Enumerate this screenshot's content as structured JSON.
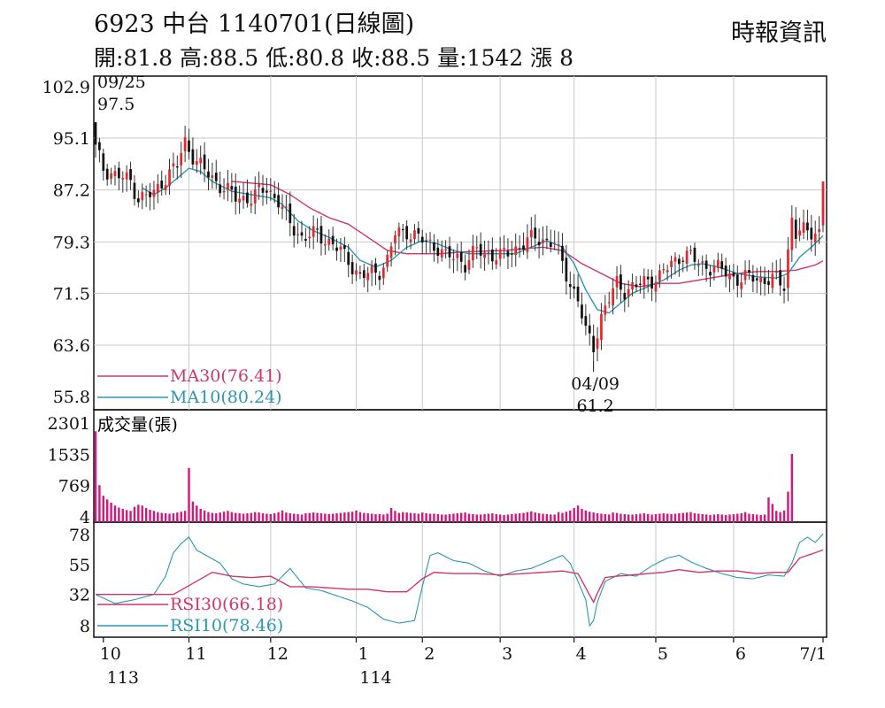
{
  "header": {
    "title": "6923  中台 1140701(日線圖)",
    "ohlc": "開:81.8 高:88.5 低:80.8 收:88.5 量:1542 漲 8",
    "source": "時報資訊"
  },
  "colors": {
    "up": "#e8262c",
    "down": "#111111",
    "ma30": "#d2356b",
    "ma10": "#2a97b4",
    "volume": "#d1187b",
    "grid": "#c9c9c9",
    "frame": "#111111"
  },
  "chart_data": [
    {
      "type": "candlestick",
      "y_ticks": [
        "102.9",
        "95.1",
        "87.2",
        "79.3",
        "71.5",
        "63.6",
        "55.8"
      ],
      "ylim": [
        55.8,
        102.9
      ],
      "x_labels": [
        {
          "label": "10",
          "sub": "113",
          "day": 2
        },
        {
          "label": "11",
          "day": 24
        },
        {
          "label": "12",
          "day": 45
        },
        {
          "label": "1",
          "sub": "114",
          "day": 67
        },
        {
          "label": "2",
          "day": 84
        },
        {
          "label": "3",
          "day": 104
        },
        {
          "label": "4",
          "day": 123
        },
        {
          "label": "5",
          "day": 144
        },
        {
          "label": "6",
          "day": 164
        },
        {
          "label": "7/1",
          "day": 187
        }
      ],
      "legend": [
        {
          "key": "ma30",
          "label": "MA30(76.41)"
        },
        {
          "key": "ma10",
          "label": "MA10(80.24)"
        }
      ],
      "annotations": [
        {
          "date": "09/25",
          "value": "97.5",
          "day": 0
        },
        {
          "date": "04/09",
          "value": "61.2",
          "day": 128
        }
      ],
      "close_anchors": [
        [
          0,
          93.5
        ],
        [
          2,
          90.5
        ],
        [
          5,
          89.5
        ],
        [
          9,
          88.5
        ],
        [
          11,
          86.0
        ],
        [
          15,
          86.5
        ],
        [
          17,
          88.5
        ],
        [
          21,
          91.0
        ],
        [
          23,
          94.5
        ],
        [
          26,
          91.5
        ],
        [
          29,
          89.5
        ],
        [
          33,
          87.5
        ],
        [
          36,
          86.0
        ],
        [
          40,
          86.0
        ],
        [
          44,
          87.5
        ],
        [
          47,
          85.5
        ],
        [
          50,
          82.0
        ],
        [
          53,
          80.0
        ],
        [
          57,
          80.5
        ],
        [
          61,
          79.0
        ],
        [
          65,
          76.5
        ],
        [
          68,
          74.0
        ],
        [
          71,
          74.5
        ],
        [
          73,
          75.0
        ],
        [
          75,
          76.5
        ],
        [
          77,
          80.5
        ],
        [
          80,
          81.0
        ],
        [
          84,
          79.5
        ],
        [
          88,
          78.5
        ],
        [
          90,
          77.0
        ],
        [
          93,
          77.0
        ],
        [
          95,
          76.0
        ],
        [
          98,
          78.0
        ],
        [
          101,
          77.5
        ],
        [
          104,
          77.0
        ],
        [
          107,
          78.0
        ],
        [
          110,
          79.0
        ],
        [
          113,
          80.0
        ],
        [
          116,
          79.5
        ],
        [
          118,
          79.0
        ],
        [
          120,
          76.0
        ],
        [
          122,
          73.0
        ],
        [
          124,
          70.5
        ],
        [
          126,
          65.5
        ],
        [
          128,
          63.5
        ],
        [
          130,
          68.0
        ],
        [
          132,
          70.5
        ],
        [
          134,
          73.0
        ],
        [
          136,
          72.0
        ],
        [
          139,
          72.5
        ],
        [
          142,
          73.5
        ],
        [
          145,
          74.0
        ],
        [
          148,
          76.0
        ],
        [
          151,
          77.5
        ],
        [
          153,
          77.0
        ],
        [
          155,
          76.0
        ],
        [
          158,
          75.5
        ],
        [
          161,
          75.0
        ],
        [
          164,
          74.0
        ],
        [
          166,
          73.5
        ],
        [
          169,
          74.0
        ],
        [
          172,
          73.5
        ],
        [
          175,
          73.5
        ],
        [
          177,
          72.8
        ],
        [
          178,
          78.0
        ],
        [
          179,
          83.0
        ],
        [
          180,
          80.5
        ],
        [
          183,
          81.0
        ],
        [
          186,
          80.8
        ],
        [
          187,
          88.5
        ]
      ],
      "ma30_anchors": [
        [
          35,
          88.5
        ],
        [
          45,
          88.0
        ],
        [
          50,
          86.5
        ],
        [
          55,
          84.5
        ],
        [
          60,
          83.0
        ],
        [
          65,
          82.0
        ],
        [
          70,
          80.0
        ],
        [
          75,
          78.0
        ],
        [
          80,
          77.5
        ],
        [
          88,
          77.5
        ],
        [
          95,
          77.8
        ],
        [
          105,
          78.0
        ],
        [
          115,
          78.5
        ],
        [
          120,
          78.0
        ],
        [
          125,
          76.0
        ],
        [
          130,
          74.5
        ],
        [
          135,
          73.0
        ],
        [
          140,
          72.5
        ],
        [
          145,
          73.0
        ],
        [
          150,
          73.0
        ],
        [
          155,
          73.5
        ],
        [
          160,
          74.0
        ],
        [
          165,
          74.5
        ],
        [
          170,
          74.8
        ],
        [
          175,
          74.8
        ],
        [
          180,
          75.0
        ],
        [
          185,
          75.8
        ],
        [
          187,
          76.41
        ]
      ],
      "ma10_anchors": [
        [
          12,
          87.5
        ],
        [
          15,
          86.5
        ],
        [
          18,
          87.5
        ],
        [
          21,
          89.0
        ],
        [
          24,
          90.5
        ],
        [
          27,
          90.0
        ],
        [
          30,
          88.5
        ],
        [
          35,
          87.0
        ],
        [
          40,
          86.5
        ],
        [
          45,
          86.0
        ],
        [
          48,
          85.0
        ],
        [
          52,
          82.5
        ],
        [
          56,
          81.0
        ],
        [
          60,
          80.0
        ],
        [
          65,
          78.5
        ],
        [
          68,
          76.5
        ],
        [
          72,
          75.5
        ],
        [
          76,
          76.5
        ],
        [
          80,
          78.5
        ],
        [
          84,
          79.5
        ],
        [
          88,
          79.0
        ],
        [
          92,
          78.0
        ],
        [
          96,
          77.5
        ],
        [
          100,
          77.5
        ],
        [
          104,
          77.5
        ],
        [
          108,
          77.5
        ],
        [
          112,
          78.5
        ],
        [
          116,
          79.5
        ],
        [
          120,
          78.5
        ],
        [
          123,
          76.0
        ],
        [
          126,
          72.0
        ],
        [
          129,
          69.0
        ],
        [
          132,
          68.5
        ],
        [
          135,
          70.0
        ],
        [
          138,
          71.5
        ],
        [
          142,
          72.5
        ],
        [
          146,
          73.5
        ],
        [
          150,
          75.0
        ],
        [
          153,
          75.8
        ],
        [
          156,
          76.0
        ],
        [
          160,
          75.5
        ],
        [
          165,
          74.5
        ],
        [
          170,
          74.0
        ],
        [
          175,
          73.8
        ],
        [
          178,
          74.5
        ],
        [
          181,
          77.0
        ],
        [
          184,
          78.5
        ],
        [
          187,
          80.24
        ]
      ]
    },
    {
      "type": "bar",
      "title": "成交量(張)",
      "y_ticks": [
        "2301",
        "1535",
        "769",
        "4"
      ],
      "ylim": [
        4,
        2301
      ],
      "values": [
        2100,
        780,
        520,
        430,
        350,
        280,
        230,
        200,
        170,
        150,
        250,
        300,
        280,
        220,
        180,
        150,
        120,
        100,
        90,
        80,
        90,
        110,
        130,
        150,
        1200,
        380,
        280,
        200,
        160,
        120,
        100,
        90,
        110,
        130,
        150,
        120,
        100,
        90,
        80,
        90,
        100,
        120,
        110,
        90,
        80,
        70,
        90,
        120,
        160,
        110,
        90,
        80,
        70,
        60,
        90,
        100,
        110,
        100,
        90,
        80,
        70,
        80,
        90,
        100,
        110,
        120,
        130,
        160,
        120,
        100,
        90,
        80,
        70,
        70,
        60,
        80,
        220,
        150,
        100,
        120,
        110,
        100,
        90,
        80,
        110,
        90,
        80,
        80,
        70,
        60,
        60,
        70,
        80,
        90,
        100,
        110,
        80,
        70,
        60,
        60,
        70,
        80,
        90,
        70,
        60,
        50,
        60,
        70,
        80,
        90,
        100,
        120,
        140,
        110,
        90,
        80,
        70,
        60,
        60,
        120,
        100,
        130,
        160,
        220,
        280,
        200,
        160,
        130,
        110,
        90,
        80,
        70,
        60,
        110,
        100,
        80,
        70,
        60,
        60,
        70,
        80,
        90,
        70,
        60,
        70,
        80,
        90,
        80,
        70,
        80,
        90,
        100,
        110,
        120,
        90,
        80,
        70,
        60,
        50,
        60,
        70,
        60,
        50,
        60,
        70,
        80,
        90,
        120,
        80,
        70,
        60,
        50,
        60,
        480,
        320,
        150,
        120,
        160,
        620,
        1542
      ]
    },
    {
      "type": "line",
      "y_ticks": [
        "78",
        "55",
        "32",
        "8"
      ],
      "ylim": [
        8,
        78
      ],
      "legend": [
        {
          "key": "ma30",
          "label": "RSI30(66.18)"
        },
        {
          "key": "ma10",
          "label": "RSI10(78.46)"
        }
      ],
      "rsi30_anchors": [
        [
          0,
          32
        ],
        [
          20,
          32
        ],
        [
          30,
          49
        ],
        [
          35,
          46
        ],
        [
          40,
          45
        ],
        [
          45,
          46
        ],
        [
          50,
          38
        ],
        [
          55,
          38
        ],
        [
          60,
          37
        ],
        [
          65,
          36
        ],
        [
          70,
          36
        ],
        [
          75,
          34
        ],
        [
          80,
          34
        ],
        [
          84,
          44
        ],
        [
          87,
          49
        ],
        [
          92,
          48
        ],
        [
          98,
          48
        ],
        [
          104,
          47
        ],
        [
          110,
          48
        ],
        [
          115,
          49
        ],
        [
          120,
          50
        ],
        [
          124,
          48
        ],
        [
          126,
          37
        ],
        [
          128,
          26
        ],
        [
          129,
          33
        ],
        [
          131,
          45
        ],
        [
          134,
          46
        ],
        [
          138,
          47
        ],
        [
          142,
          48
        ],
        [
          146,
          49
        ],
        [
          150,
          51
        ],
        [
          155,
          49
        ],
        [
          160,
          50
        ],
        [
          165,
          50
        ],
        [
          170,
          48
        ],
        [
          175,
          49
        ],
        [
          178,
          49
        ],
        [
          181,
          60
        ],
        [
          184,
          63
        ],
        [
          187,
          66.18
        ]
      ],
      "rsi10_anchors": [
        [
          0,
          32
        ],
        [
          5,
          25
        ],
        [
          10,
          28
        ],
        [
          15,
          32
        ],
        [
          18,
          46
        ],
        [
          20,
          64
        ],
        [
          22,
          71
        ],
        [
          24,
          76
        ],
        [
          26,
          66
        ],
        [
          29,
          61
        ],
        [
          32,
          56
        ],
        [
          35,
          44
        ],
        [
          38,
          40
        ],
        [
          42,
          38
        ],
        [
          46,
          40
        ],
        [
          50,
          52
        ],
        [
          54,
          37
        ],
        [
          58,
          35
        ],
        [
          62,
          31
        ],
        [
          66,
          27
        ],
        [
          70,
          22
        ],
        [
          74,
          13
        ],
        [
          78,
          10
        ],
        [
          82,
          12
        ],
        [
          84,
          38
        ],
        [
          86,
          62
        ],
        [
          88,
          64
        ],
        [
          92,
          58
        ],
        [
          96,
          56
        ],
        [
          100,
          50
        ],
        [
          104,
          46
        ],
        [
          108,
          50
        ],
        [
          112,
          52
        ],
        [
          116,
          57
        ],
        [
          120,
          62
        ],
        [
          122,
          56
        ],
        [
          124,
          42
        ],
        [
          126,
          28
        ],
        [
          127,
          8
        ],
        [
          128,
          12
        ],
        [
          129,
          26
        ],
        [
          131,
          42
        ],
        [
          135,
          48
        ],
        [
          139,
          46
        ],
        [
          143,
          54
        ],
        [
          147,
          60
        ],
        [
          150,
          62
        ],
        [
          153,
          57
        ],
        [
          157,
          52
        ],
        [
          161,
          48
        ],
        [
          165,
          45
        ],
        [
          169,
          44
        ],
        [
          173,
          47
        ],
        [
          177,
          46
        ],
        [
          179,
          56
        ],
        [
          181,
          72
        ],
        [
          183,
          76
        ],
        [
          185,
          72
        ],
        [
          187,
          78.46
        ]
      ]
    }
  ]
}
